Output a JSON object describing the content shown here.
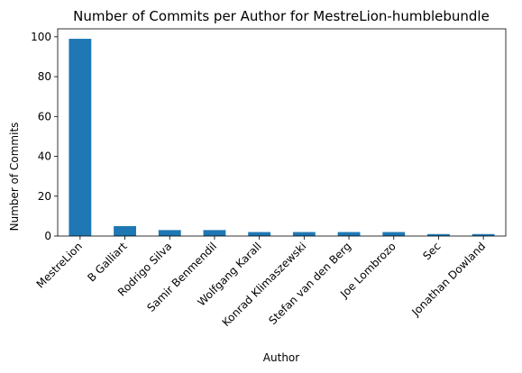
{
  "chart_data": {
    "type": "bar",
    "title": "Number of Commits per Author for MestreLion-humblebundle",
    "xlabel": "Author",
    "ylabel": "Number of Commits",
    "categories": [
      "MestreLion",
      "B Galliart",
      "Rodrigo Silva",
      "Samir Benmendil",
      "Wolfgang Karall",
      "Konrad Klimaszewski",
      "Stefan van den Berg",
      "Joe Lombrozo",
      "Sec",
      "Jonathan Dowland"
    ],
    "values": [
      99,
      5,
      3,
      3,
      2,
      2,
      2,
      2,
      1,
      1
    ],
    "ylim": [
      0,
      104
    ],
    "yticks": [
      "0",
      "20",
      "40",
      "60",
      "80",
      "100"
    ],
    "bar_color": "#1f77b4",
    "grid": false,
    "legend": "none"
  }
}
